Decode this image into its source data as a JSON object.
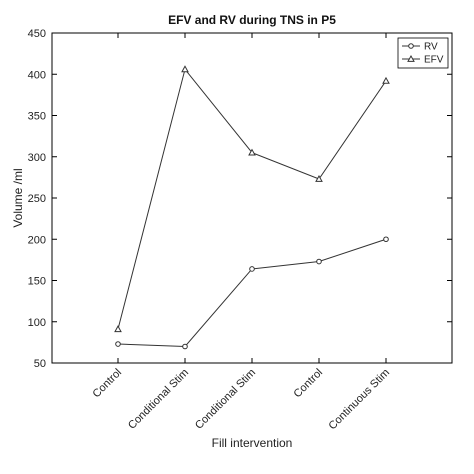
{
  "chart_data": {
    "type": "line",
    "title": "EFV and RV during TNS in P5",
    "xlabel": "Fill intervention",
    "ylabel": "Volume /ml",
    "categories": [
      "Control",
      "Conditional Stim",
      "Conditional Stim",
      "Control",
      "Continuous Stim"
    ],
    "ylim": [
      50,
      450
    ],
    "yticks": [
      50,
      100,
      150,
      200,
      250,
      300,
      350,
      400,
      450
    ],
    "grid": false,
    "legend_position": "top-right",
    "series": [
      {
        "name": "RV",
        "marker": "circle",
        "values": [
          73,
          70,
          164,
          173,
          200
        ]
      },
      {
        "name": "EFV",
        "marker": "triangle",
        "values": [
          91,
          406,
          305,
          273,
          392
        ]
      }
    ],
    "colors": {
      "line": "#333333",
      "axis": "#000000"
    }
  }
}
